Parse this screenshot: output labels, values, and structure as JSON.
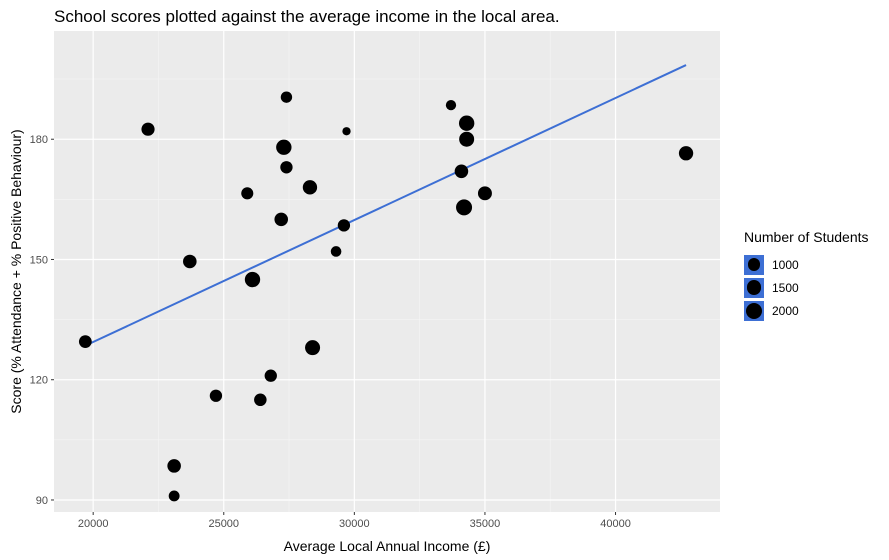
{
  "title": "School scores plotted against the average income in the local area.",
  "chart_data": {
    "type": "scatter",
    "title": "School scores plotted against the average income in the local area.",
    "xlabel": "Average Local Annual Income (£)",
    "ylabel": "Score (% Attendance + % Positive Behaviour)",
    "xlim": [
      18500,
      44000
    ],
    "ylim": [
      87,
      207
    ],
    "xticks": [
      20000,
      25000,
      30000,
      35000,
      40000
    ],
    "yticks": [
      90,
      120,
      150,
      180
    ],
    "grid": true,
    "size_legend": {
      "title": "Number of Students",
      "entries": [
        {
          "label": "1000",
          "size": 1000
        },
        {
          "label": "1500",
          "size": 1500
        },
        {
          "label": "2000",
          "size": 2000
        }
      ]
    },
    "trend_line": {
      "color": "#3d6fd4",
      "x": [
        19700,
        42700
      ],
      "y": [
        128.5,
        198.5
      ]
    },
    "points": [
      {
        "x": 19700,
        "y": 129.5,
        "size": 1100
      },
      {
        "x": 22100,
        "y": 182.5,
        "size": 1200
      },
      {
        "x": 23100,
        "y": 98.5,
        "size": 1300
      },
      {
        "x": 23100,
        "y": 91,
        "size": 700
      },
      {
        "x": 23700,
        "y": 149.5,
        "size": 1300
      },
      {
        "x": 24700,
        "y": 116,
        "size": 1000
      },
      {
        "x": 25900,
        "y": 166.5,
        "size": 950
      },
      {
        "x": 26100,
        "y": 145,
        "size": 1800
      },
      {
        "x": 26400,
        "y": 115,
        "size": 1050
      },
      {
        "x": 26800,
        "y": 121,
        "size": 1000
      },
      {
        "x": 27200,
        "y": 160,
        "size": 1300
      },
      {
        "x": 27300,
        "y": 178,
        "size": 1800
      },
      {
        "x": 27400,
        "y": 173,
        "size": 1000
      },
      {
        "x": 27400,
        "y": 190.5,
        "size": 800
      },
      {
        "x": 28300,
        "y": 168,
        "size": 1500
      },
      {
        "x": 28400,
        "y": 128,
        "size": 1700
      },
      {
        "x": 29300,
        "y": 152,
        "size": 650
      },
      {
        "x": 29600,
        "y": 158.5,
        "size": 1000
      },
      {
        "x": 29700,
        "y": 182,
        "size": 300
      },
      {
        "x": 33700,
        "y": 188.5,
        "size": 600
      },
      {
        "x": 34100,
        "y": 172,
        "size": 1300
      },
      {
        "x": 34200,
        "y": 163,
        "size": 2000
      },
      {
        "x": 34300,
        "y": 184,
        "size": 1800
      },
      {
        "x": 34300,
        "y": 180,
        "size": 1700
      },
      {
        "x": 35000,
        "y": 166.5,
        "size": 1400
      },
      {
        "x": 42700,
        "y": 176.5,
        "size": 1500
      }
    ]
  }
}
